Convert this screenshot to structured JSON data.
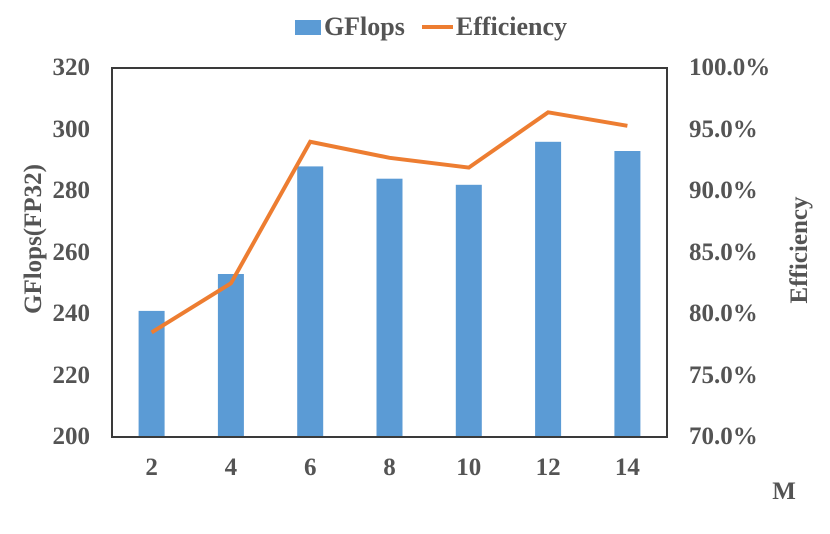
{
  "colors": {
    "bar": "#5B9BD5",
    "line": "#ED7D31",
    "text": "#545454",
    "frame": "#3A3A3A",
    "background": "#FFFFFF"
  },
  "legend": {
    "items": [
      {
        "label": "GFlops",
        "marker": "bar-swatch"
      },
      {
        "label": "Efficiency",
        "marker": "line-swatch"
      }
    ]
  },
  "chart_data": {
    "type": "bar+line dual-axis combo",
    "categories": [
      "2",
      "4",
      "6",
      "8",
      "10",
      "12",
      "14"
    ],
    "series": [
      {
        "name": "GFlops",
        "type": "bar",
        "axis": "left",
        "values": [
          241,
          253,
          288,
          284,
          282,
          296,
          293
        ]
      },
      {
        "name": "Efficiency",
        "type": "line",
        "axis": "right",
        "values": [
          78.5,
          82.5,
          94.0,
          92.7,
          91.9,
          96.4,
          95.3
        ]
      }
    ],
    "left_axis": {
      "label": "GFlops(FP32)",
      "min": 200,
      "max": 320,
      "step": 20,
      "ticks": [
        "320",
        "300",
        "280",
        "260",
        "240",
        "220",
        "200"
      ]
    },
    "right_axis": {
      "label": "Efficiency",
      "min": 70,
      "max": 100,
      "step": 5,
      "ticks": [
        "100.0%",
        "95.0%",
        "90.0%",
        "85.0%",
        "80.0%",
        "75.0%",
        "70.0%"
      ]
    },
    "x_axis": {
      "label": "M"
    },
    "grid": false,
    "legend_position": "top-center"
  }
}
